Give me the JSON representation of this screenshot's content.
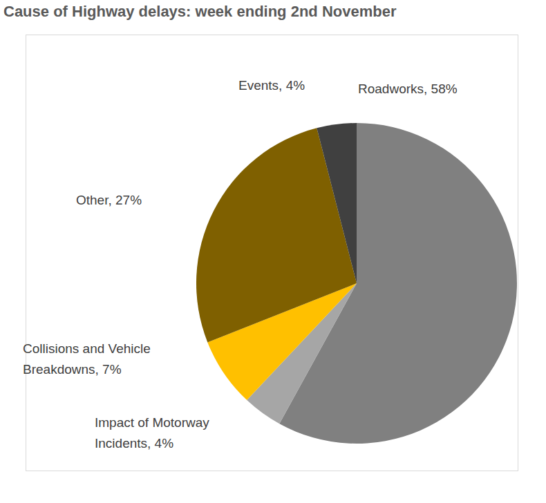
{
  "chart_data": {
    "type": "pie",
    "title": "Cause of Highway delays: week ending 2nd November",
    "categories": [
      "Roadworks",
      "Impact of Motorway Incidents",
      "Collisions and Vehicle Breakdowns",
      "Other",
      "Events"
    ],
    "values": [
      58,
      4,
      7,
      27,
      4
    ],
    "value_labels": [
      "Roadworks, 58%",
      "Impact of Motorway Incidents, 4%",
      "Collisions and Vehicle Breakdowns, 7%",
      "Other, 27%",
      "Events, 4%"
    ],
    "colors": [
      "#808080",
      "#a6a6a6",
      "#ffc000",
      "#7f6000",
      "#404040"
    ],
    "data_labels": true
  }
}
